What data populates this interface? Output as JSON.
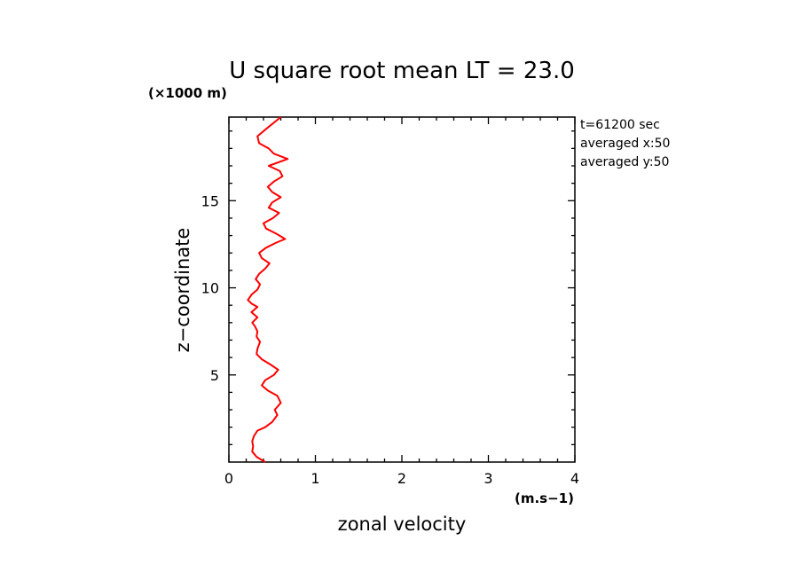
{
  "chart_data": {
    "type": "line",
    "title": "U square root mean LT = 23.0",
    "xlabel": "zonal velocity",
    "ylabel": "z−coordinate",
    "x_unit": "(m.s−1)",
    "y_unit": "(×1000 m)",
    "xlim": [
      0,
      4
    ],
    "ylim": [
      0,
      19.8
    ],
    "x_ticks": [
      "0",
      "1",
      "2",
      "3",
      "4"
    ],
    "y_ticks": [
      "5",
      "10",
      "15"
    ],
    "grid": false,
    "line_color": "#ff0000",
    "info": [
      "t=61200 sec",
      "averaged  x:50",
      "averaged  y:50"
    ],
    "series": [
      {
        "x": [
          0.42,
          0.32,
          0.27,
          0.28,
          0.27,
          0.29,
          0.33,
          0.42,
          0.5,
          0.56,
          0.53,
          0.6,
          0.56,
          0.45,
          0.38,
          0.42,
          0.52,
          0.57,
          0.48,
          0.38,
          0.32,
          0.33,
          0.36,
          0.32,
          0.33,
          0.3,
          0.27,
          0.33,
          0.26,
          0.33,
          0.26,
          0.22,
          0.26,
          0.33,
          0.36,
          0.31,
          0.35,
          0.42,
          0.47,
          0.38,
          0.35,
          0.43,
          0.55,
          0.65,
          0.55,
          0.43,
          0.4,
          0.51,
          0.58,
          0.46,
          0.5,
          0.6,
          0.5,
          0.45,
          0.52,
          0.62,
          0.59,
          0.46,
          0.68,
          0.52,
          0.46,
          0.35,
          0.33,
          0.45,
          0.6
        ],
        "y": [
          0.0,
          0.3,
          0.6,
          0.9,
          1.2,
          1.5,
          1.8,
          2.0,
          2.3,
          2.7,
          3.0,
          3.4,
          3.8,
          4.1,
          4.4,
          4.7,
          5.0,
          5.3,
          5.6,
          5.9,
          6.2,
          6.5,
          6.9,
          7.2,
          7.5,
          7.8,
          8.0,
          8.3,
          8.6,
          8.9,
          9.1,
          9.3,
          9.6,
          9.9,
          10.2,
          10.5,
          10.8,
          11.1,
          11.4,
          11.7,
          12.0,
          12.3,
          12.6,
          12.8,
          13.1,
          13.4,
          13.7,
          14.0,
          14.3,
          14.6,
          14.9,
          15.2,
          15.5,
          15.8,
          16.1,
          16.4,
          16.7,
          17.0,
          17.4,
          17.7,
          18.0,
          18.3,
          18.7,
          19.2,
          19.8
        ]
      }
    ]
  }
}
